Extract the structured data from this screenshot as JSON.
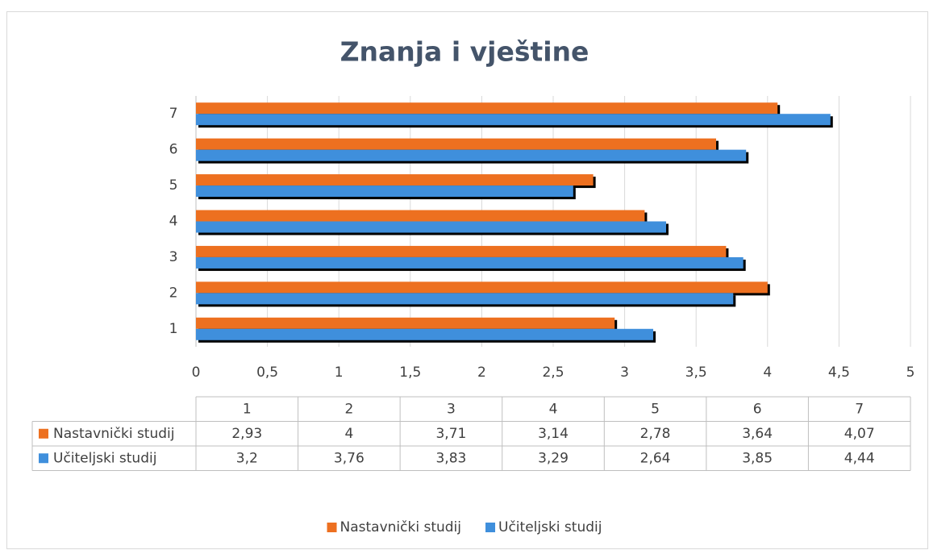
{
  "chart_data": {
    "type": "barh",
    "title": "Znanja i vještine",
    "categories": [
      "1",
      "2",
      "3",
      "4",
      "5",
      "6",
      "7"
    ],
    "series": [
      {
        "name": "Nastavnički studij",
        "color": "#ed7020",
        "values": [
          2.93,
          4,
          3.71,
          3.14,
          2.78,
          3.64,
          4.07
        ],
        "value_labels": [
          "2,93",
          "4",
          "3,71",
          "3,14",
          "2,78",
          "3,64",
          "4,07"
        ]
      },
      {
        "name": "Učiteljski studij",
        "color": "#3f8fdc",
        "values": [
          3.2,
          3.76,
          3.83,
          3.29,
          2.64,
          3.85,
          4.44
        ],
        "value_labels": [
          "3,2",
          "3,76",
          "3,83",
          "3,29",
          "2,64",
          "3,85",
          "4,44"
        ]
      }
    ],
    "xlim": [
      0,
      5
    ],
    "xticks": [
      0,
      {
        "value": 0.5,
        "label": "0,5"
      },
      1,
      {
        "value": 1.5,
        "label": "1,5"
      },
      2,
      {
        "value": 2.5,
        "label": "2,5"
      },
      3,
      {
        "value": 3.5,
        "label": "3,5"
      },
      4,
      {
        "value": 4.5,
        "label": "4,5"
      },
      5
    ],
    "grid": true,
    "legend": "bottom",
    "data_table": true
  }
}
